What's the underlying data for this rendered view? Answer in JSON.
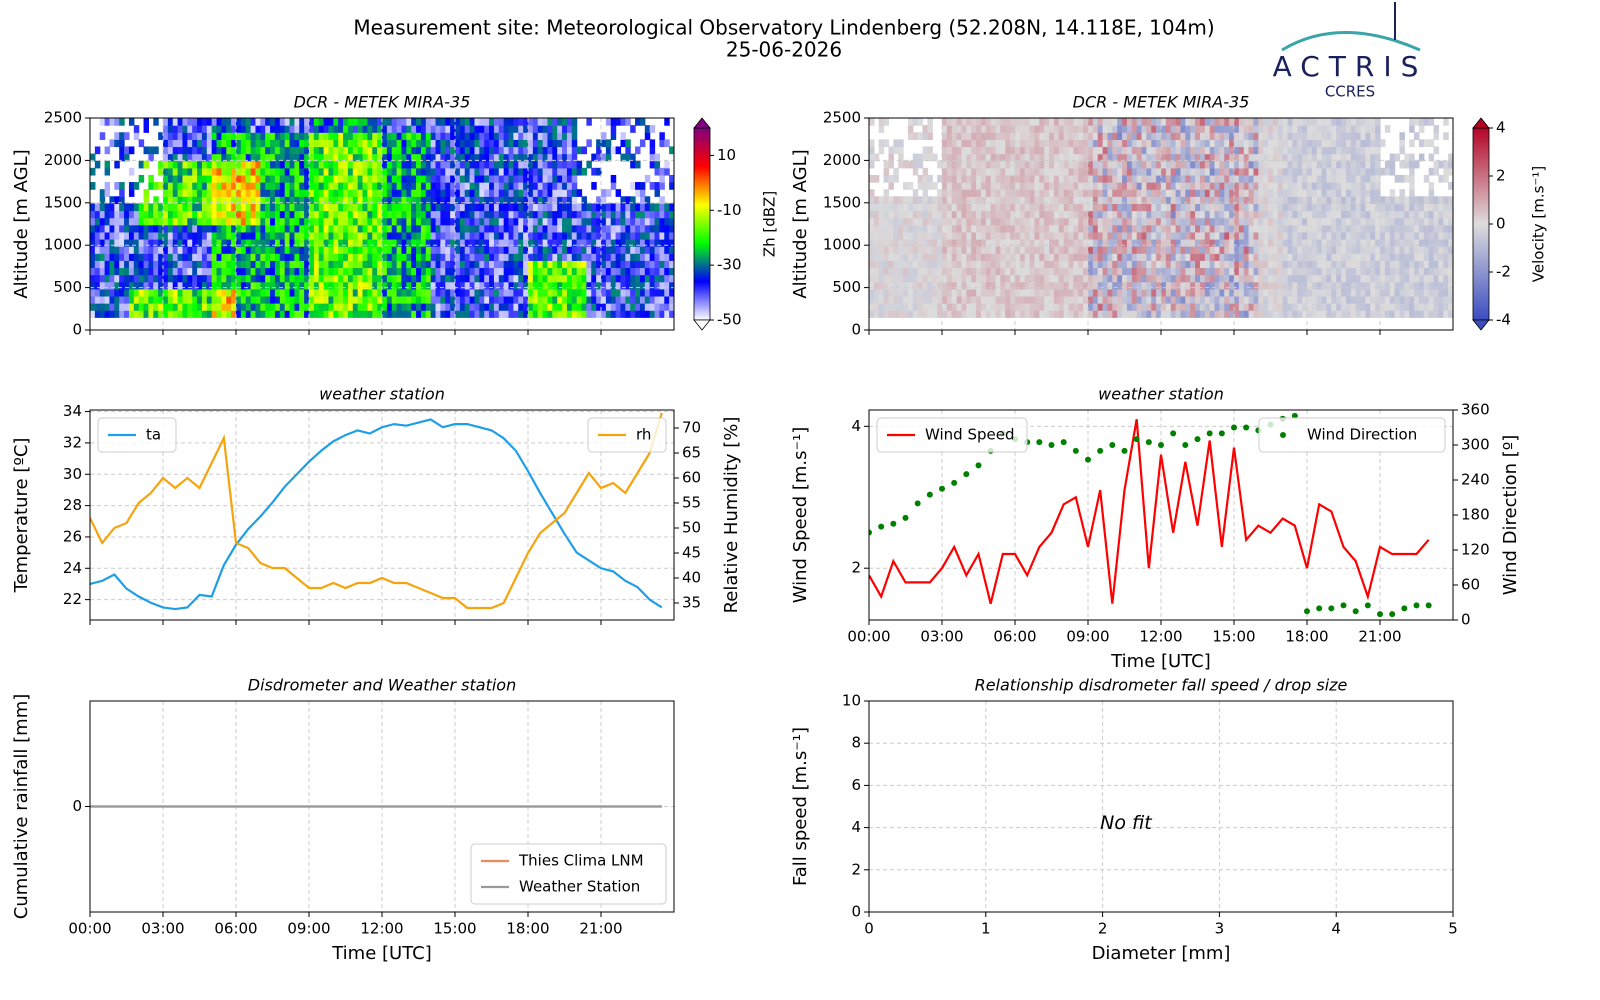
{
  "header": {
    "title": "Measurement site: Meteorological Observatory Lindenberg (52.208N, 14.118E, 104m)",
    "date": "25-06-2026"
  },
  "logo": {
    "name": "ACTRIS",
    "sub": "CCRES"
  },
  "chart_data": [
    {
      "type": "heatmap",
      "title": "DCR - METEK MIRA-35",
      "ylabel": "Altitude [m AGL]",
      "xlim": [
        0,
        24
      ],
      "xticks": [
        0,
        3,
        6,
        9,
        12,
        15,
        18,
        21
      ],
      "ylim": [
        0,
        2500
      ],
      "yticks": [
        0,
        500,
        1000,
        1500,
        2000,
        2500
      ],
      "grid": true,
      "colorbar": {
        "label": "Zh [dBZ]",
        "clim": [
          -50,
          20
        ],
        "ticks": [
          -50,
          -30,
          -10,
          10
        ],
        "colors": [
          "#ffffff",
          "#0000ff",
          "#00ff00",
          "#ffff00",
          "#ff0000",
          "#800080"
        ]
      }
    },
    {
      "type": "heatmap",
      "title": "DCR - METEK MIRA-35",
      "ylabel": "Altitude [m AGL]",
      "xlim": [
        0,
        24
      ],
      "xticks": [
        0,
        3,
        6,
        9,
        12,
        15,
        18,
        21
      ],
      "ylim": [
        0,
        2500
      ],
      "yticks": [
        0,
        500,
        1000,
        1500,
        2000,
        2500
      ],
      "grid": true,
      "colorbar": {
        "label": "Velocity [m.s⁻¹]",
        "clim": [
          -4,
          4
        ],
        "ticks": [
          -4,
          -2,
          0,
          2,
          4
        ],
        "colors": [
          "#3b4cc0",
          "#dddddd",
          "#b40426"
        ]
      }
    },
    {
      "type": "line",
      "title": "weather station",
      "ylabel": "Temperature [ºC]",
      "y2label": "Relative Humidity [%]",
      "xlim": [
        0,
        24
      ],
      "xticks": [
        0,
        3,
        6,
        9,
        12,
        15,
        18,
        21
      ],
      "ylim": [
        20.7,
        34.1
      ],
      "yticks": [
        22,
        24,
        26,
        28,
        30,
        32,
        34
      ],
      "y2lim": [
        31.6,
        73.6
      ],
      "y2ticks": [
        35,
        40,
        45,
        50,
        55,
        60,
        65,
        70
      ],
      "grid": true,
      "series": [
        {
          "name": "ta",
          "color": "#1f9ee8",
          "legend": "upper left",
          "x": [
            0,
            0.5,
            1,
            1.5,
            2,
            2.5,
            3,
            3.5,
            4,
            4.5,
            5,
            5.5,
            6,
            6.5,
            7,
            7.5,
            8,
            8.5,
            9,
            9.5,
            10,
            10.5,
            11,
            11.5,
            12,
            12.5,
            13,
            13.5,
            14,
            14.5,
            15,
            15.5,
            16,
            16.5,
            17,
            17.5,
            18,
            18.5,
            19,
            19.5,
            20,
            20.5,
            21,
            21.5,
            22,
            22.5,
            23,
            23.5
          ],
          "values": [
            23.0,
            23.2,
            23.6,
            22.7,
            22.2,
            21.8,
            21.5,
            21.4,
            21.5,
            22.3,
            22.2,
            24.2,
            25.5,
            26.5,
            27.3,
            28.2,
            29.2,
            30.0,
            30.8,
            31.5,
            32.1,
            32.5,
            32.8,
            32.6,
            33.0,
            33.2,
            33.1,
            33.3,
            33.5,
            33.0,
            33.2,
            33.2,
            33.0,
            32.8,
            32.3,
            31.5,
            30.2,
            28.8,
            27.5,
            26.2,
            25.0,
            24.5,
            24.0,
            23.8,
            23.2,
            22.8,
            22.0,
            21.5
          ]
        },
        {
          "name": "rh",
          "color": "#f5a40c",
          "legend": "upper right",
          "axis": "y2",
          "x": [
            0,
            0.5,
            1,
            1.5,
            2,
            2.5,
            3,
            3.5,
            4,
            4.5,
            5,
            5.5,
            6,
            6.5,
            7,
            7.5,
            8,
            8.5,
            9,
            9.5,
            10,
            10.5,
            11,
            11.5,
            12,
            12.5,
            13,
            13.5,
            14,
            14.5,
            15,
            15.5,
            16,
            16.5,
            17,
            17.5,
            18,
            18.5,
            19,
            19.5,
            20,
            20.5,
            21,
            21.5,
            22,
            22.5,
            23,
            23.5
          ],
          "values": [
            52,
            47,
            50,
            51,
            55,
            57,
            60,
            58,
            60,
            58,
            63,
            68,
            47,
            46,
            43,
            42,
            42,
            40,
            38,
            38,
            39,
            38,
            39,
            39,
            40,
            39,
            39,
            38,
            37,
            36,
            36,
            34,
            34,
            34,
            35,
            40,
            45,
            49,
            51,
            53,
            57,
            61,
            58,
            59,
            57,
            61,
            65,
            73
          ]
        }
      ]
    },
    {
      "type": "line",
      "title": "weather station",
      "ylabel": "Wind Speed [m.s⁻¹]",
      "y2label": "Wind Direction [º]",
      "xlabel": "Time [UTC]",
      "xlim": [
        0,
        24
      ],
      "xticks": [
        {
          "value": 0,
          "label": "00:00"
        },
        {
          "value": 3,
          "label": "03:00"
        },
        {
          "value": 6,
          "label": "06:00"
        },
        {
          "value": 9,
          "label": "09:00"
        },
        {
          "value": 12,
          "label": "12:00"
        },
        {
          "value": 15,
          "label": "15:00"
        },
        {
          "value": 18,
          "label": "18:00"
        },
        {
          "value": 21,
          "label": "21:00"
        }
      ],
      "ylim": [
        1.27,
        4.23
      ],
      "yticks": [
        2,
        4
      ],
      "y2lim": [
        0,
        360
      ],
      "y2ticks": [
        0,
        60,
        120,
        180,
        240,
        300,
        360
      ],
      "grid": true,
      "series": [
        {
          "name": "Wind Speed",
          "color": "#ff0000",
          "legend": "upper left",
          "x": [
            0,
            0.5,
            1,
            1.5,
            2,
            2.5,
            3,
            3.5,
            4,
            4.5,
            5,
            5.5,
            6,
            6.5,
            7,
            7.5,
            8,
            8.5,
            9,
            9.5,
            10,
            10.5,
            11,
            11.5,
            12,
            12.5,
            13,
            13.5,
            14,
            14.5,
            15,
            15.5,
            16,
            16.5,
            17,
            17.5,
            18,
            18.5,
            19,
            19.5,
            20,
            20.5,
            21,
            21.5,
            22,
            22.5,
            23
          ],
          "values": [
            1.9,
            1.6,
            2.1,
            1.8,
            1.8,
            1.8,
            2.0,
            2.3,
            1.9,
            2.2,
            1.5,
            2.2,
            2.2,
            1.9,
            2.3,
            2.5,
            2.9,
            3.0,
            2.3,
            3.1,
            1.5,
            3.1,
            4.1,
            2.0,
            3.6,
            2.5,
            3.5,
            2.6,
            3.8,
            2.3,
            3.7,
            2.4,
            2.6,
            2.5,
            2.7,
            2.6,
            2.0,
            2.9,
            2.8,
            2.3,
            2.1,
            1.6,
            2.3,
            2.2,
            2.2,
            2.2,
            2.4
          ]
        },
        {
          "name": "Wind Direction",
          "color": "#008000",
          "legend": "upper right",
          "axis": "y2",
          "marker": "dot",
          "x": [
            0,
            0.5,
            1,
            1.5,
            2,
            2.5,
            3,
            3.5,
            4,
            4.5,
            5,
            5.5,
            6,
            6.5,
            7,
            7.5,
            8,
            8.5,
            9,
            9.5,
            10,
            10.5,
            11,
            11.5,
            12,
            12.5,
            13,
            13.5,
            14,
            14.5,
            15,
            15.5,
            16,
            16.5,
            17,
            17.5,
            18,
            18.5,
            19,
            19.5,
            20,
            20.5,
            21,
            21.5,
            22,
            22.5,
            23
          ],
          "values": [
            150,
            160,
            165,
            175,
            200,
            215,
            225,
            235,
            250,
            265,
            290,
            320,
            310,
            305,
            305,
            300,
            305,
            290,
            275,
            290,
            300,
            290,
            310,
            305,
            300,
            320,
            300,
            310,
            320,
            320,
            330,
            330,
            325,
            335,
            345,
            350,
            15,
            20,
            20,
            25,
            15,
            25,
            10,
            10,
            20,
            25,
            25
          ]
        }
      ]
    },
    {
      "type": "line",
      "title": "Disdrometer and Weather station",
      "ylabel": "Cumulative rainfall [mm]",
      "xlabel": "Time [UTC]",
      "xlim": [
        0,
        24
      ],
      "xticks": [
        {
          "value": 0,
          "label": "00:00"
        },
        {
          "value": 3,
          "label": "03:00"
        },
        {
          "value": 6,
          "label": "06:00"
        },
        {
          "value": 9,
          "label": "09:00"
        },
        {
          "value": 12,
          "label": "12:00"
        },
        {
          "value": 15,
          "label": "15:00"
        },
        {
          "value": 18,
          "label": "18:00"
        },
        {
          "value": 21,
          "label": "21:00"
        }
      ],
      "ylim": [
        -0.055,
        0.055
      ],
      "yticks": [
        0
      ],
      "grid": true,
      "series": [
        {
          "name": "Thies Clima LNM",
          "color": "#f08a5d",
          "legend": "lower right",
          "x": [
            0,
            23.5
          ],
          "values": [
            0,
            0
          ]
        },
        {
          "name": "Weather Station",
          "color": "#999999",
          "legend": "lower right",
          "x": [
            0,
            23.5
          ],
          "values": [
            0,
            0
          ]
        }
      ]
    },
    {
      "type": "scatter",
      "title": "Relationship disdrometer fall speed / drop size",
      "ylabel": "Fall speed [m.s⁻¹]",
      "xlabel": "Diameter [mm]",
      "xlim": [
        0,
        5
      ],
      "xticks": [
        0,
        1,
        2,
        3,
        4,
        5
      ],
      "ylim": [
        0,
        10
      ],
      "yticks": [
        0,
        2,
        4,
        6,
        8,
        10
      ],
      "grid": true,
      "annotation": {
        "text": "No fit",
        "x": 2.2,
        "y": 4.2
      }
    }
  ]
}
